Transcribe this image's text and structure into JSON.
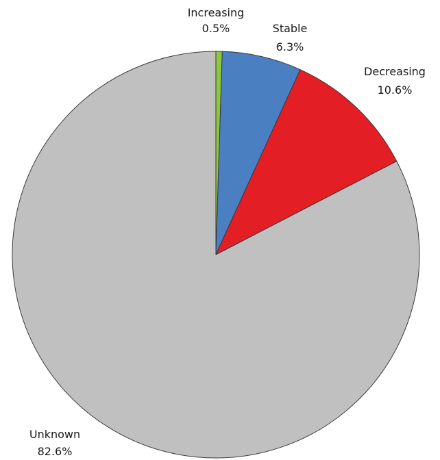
{
  "chart_data": {
    "type": "pie",
    "start_angle": "12 o'clock",
    "direction": "clockwise",
    "slices": [
      {
        "label": "Increasing",
        "value": 0.5,
        "value_label": "0.5%",
        "color": "#8dc63f"
      },
      {
        "label": "Stable",
        "value": 6.3,
        "value_label": "6.3%",
        "color": "#4a7fc1"
      },
      {
        "label": "Decreasing",
        "value": 10.6,
        "value_label": "10.6%",
        "color": "#e31e24"
      },
      {
        "label": "Unknown",
        "value": 82.6,
        "value_label": "82.6%",
        "color": "#c0c0c0"
      }
    ]
  }
}
